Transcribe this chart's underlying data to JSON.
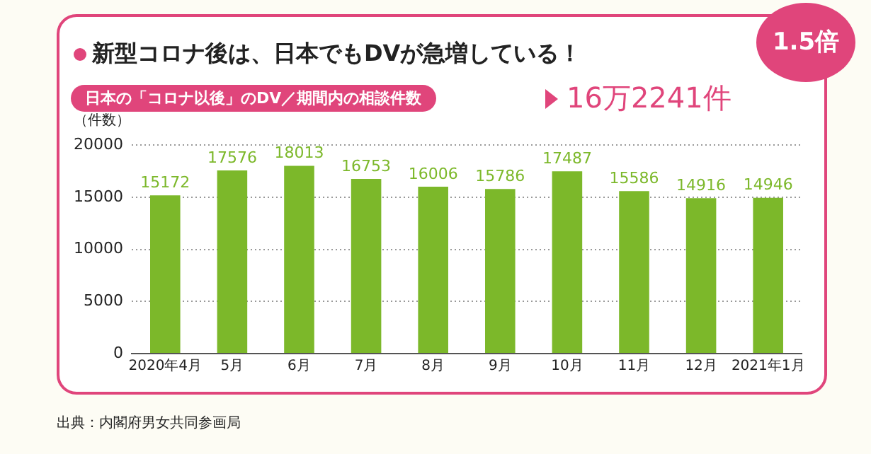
{
  "chart_data": {
    "type": "bar",
    "title": "新型コロナ後は、日本でもDVが急増している！",
    "subtitle": "日本の「コロナ以後」のDV／期間内の相談件数",
    "ylabel": "（件数）",
    "annotations": [
      "16万2241件",
      "1.5倍",
      "出典：内閣府男女共同参画局"
    ],
    "categories": [
      "2020年4月",
      "5月",
      "6月",
      "7月",
      "8月",
      "9月",
      "10月",
      "11月",
      "12月",
      "2021年1月"
    ],
    "values": [
      15172,
      17576,
      18013,
      16753,
      16006,
      15786,
      17487,
      15586,
      14916,
      14946
    ],
    "color": "#7cb82a",
    "ylim": [
      0,
      20000
    ],
    "yticks": [
      0,
      5000,
      10000,
      15000,
      20000
    ],
    "grid": "y",
    "data_labels": true
  }
}
